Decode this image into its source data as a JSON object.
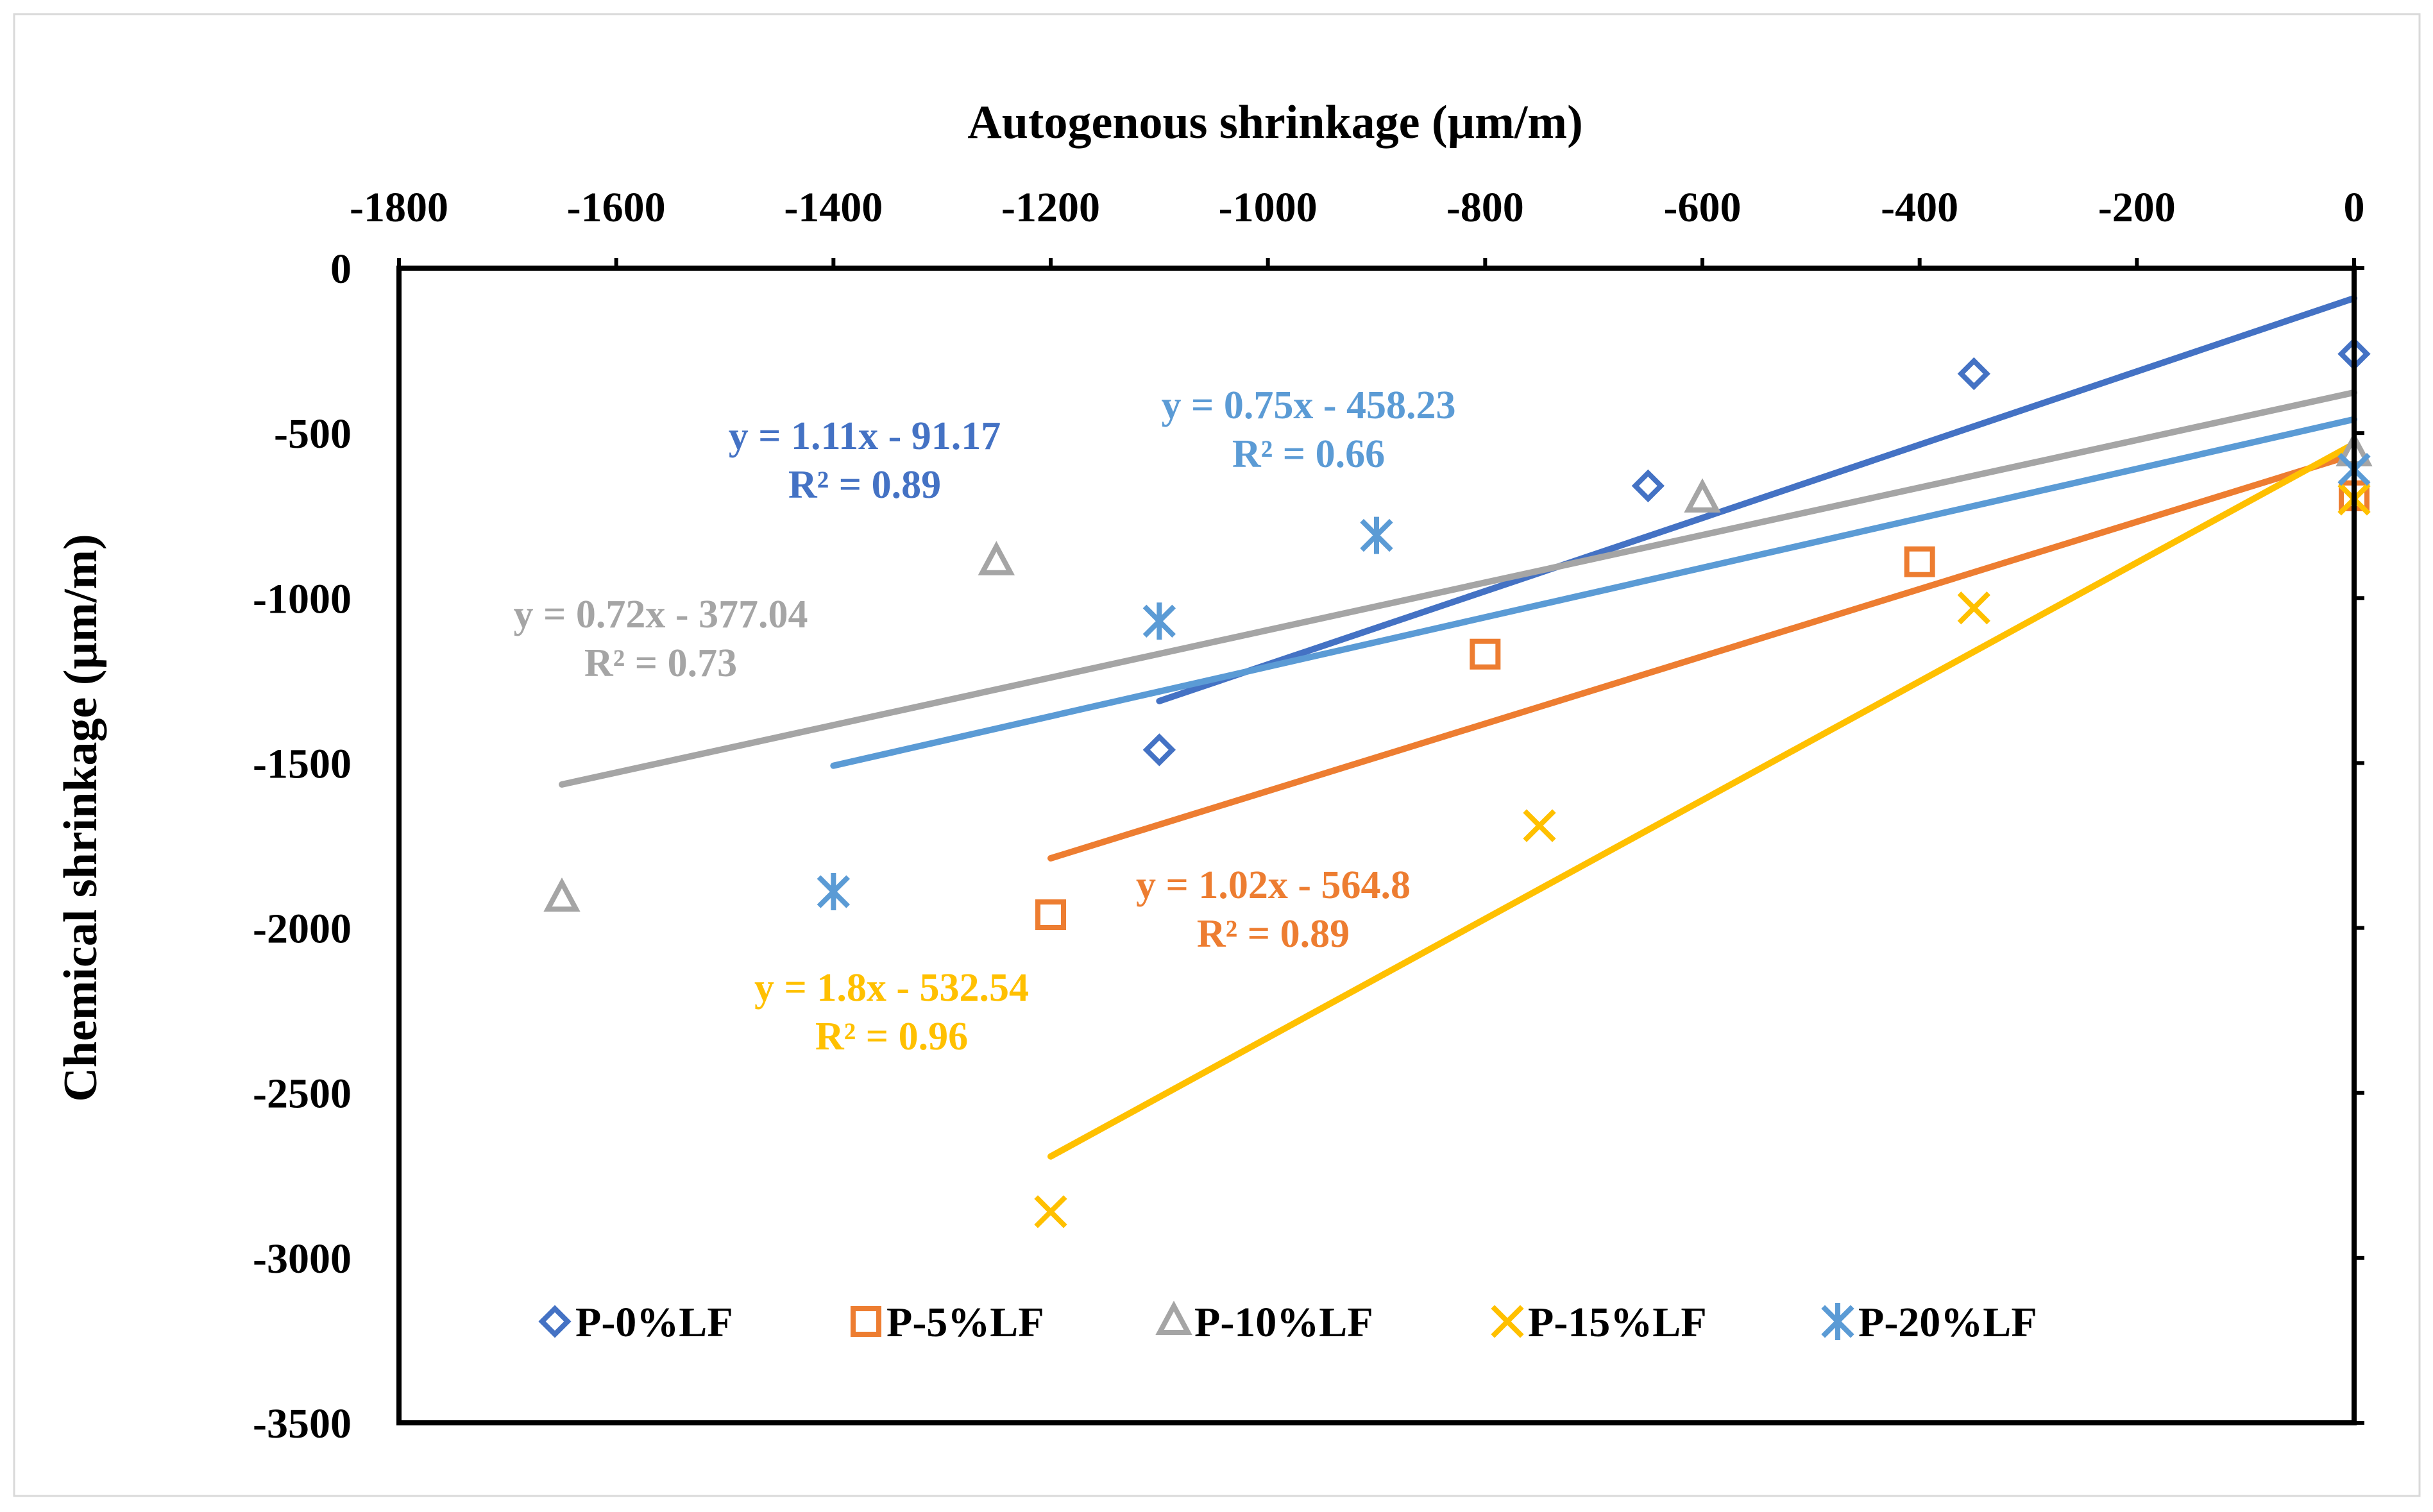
{
  "chart_data": {
    "type": "scatter",
    "title": "",
    "xlabel": "Autogenous shrinkage (µm/m)",
    "ylabel": "Chemical shrinkage (µm/m)",
    "xlim": [
      -1800,
      0
    ],
    "ylim": [
      -3500,
      0
    ],
    "x_ticks": [
      -1800,
      -1600,
      -1400,
      -1200,
      -1000,
      -800,
      -600,
      -400,
      -200,
      0
    ],
    "y_ticks": [
      0,
      -500,
      -1000,
      -1500,
      -2000,
      -2500,
      -3000,
      -3500
    ],
    "x_axis_position": "top",
    "grid": false,
    "legend_position": "bottom-inside",
    "series": [
      {
        "name": "P-0%LF",
        "marker": "diamond",
        "color": "#4472C4",
        "points": [
          [
            -1100,
            -1460
          ],
          [
            -650,
            -660
          ],
          [
            -350,
            -320
          ],
          [
            0,
            -260
          ]
        ],
        "trendline": {
          "x_range": [
            -1100,
            0
          ],
          "slope": 1.11,
          "intercept": -91.17,
          "equation": "y = 1.11x - 91.17",
          "r2": "R² = 0.89"
        }
      },
      {
        "name": "P-5%LF",
        "marker": "square",
        "color": "#ED7D31",
        "points": [
          [
            -1200,
            -1960
          ],
          [
            -800,
            -1170
          ],
          [
            -400,
            -890
          ],
          [
            0,
            -690
          ]
        ],
        "trendline": {
          "x_range": [
            -1200,
            0
          ],
          "slope": 1.02,
          "intercept": -564.8,
          "equation": "y = 1.02x - 564.8",
          "r2": "R² = 0.89"
        }
      },
      {
        "name": "P-10%LF",
        "marker": "triangle",
        "color": "#A5A5A5",
        "points": [
          [
            -1650,
            -1910
          ],
          [
            -1250,
            -890
          ],
          [
            -600,
            -700
          ],
          [
            0,
            -560
          ]
        ],
        "trendline": {
          "x_range": [
            -1650,
            0
          ],
          "slope": 0.72,
          "intercept": -377.04,
          "equation": "y = 0.72x - 377.04",
          "r2": "R² = 0.73"
        }
      },
      {
        "name": "P-15%LF",
        "marker": "x",
        "color": "#FFC000",
        "points": [
          [
            -1200,
            -2860
          ],
          [
            -750,
            -1690
          ],
          [
            -350,
            -1030
          ],
          [
            0,
            -700
          ]
        ],
        "trendline": {
          "x_range": [
            -1200,
            0
          ],
          "slope": 1.8,
          "intercept": -532.54,
          "equation": "y = 1.8x - 532.54",
          "r2": "R² = 0.96"
        }
      },
      {
        "name": "P-20%LF",
        "marker": "star",
        "color": "#5B9BD5",
        "points": [
          [
            -1400,
            -1890
          ],
          [
            -1100,
            -1070
          ],
          [
            -900,
            -810
          ],
          [
            0,
            -610
          ]
        ],
        "trendline": {
          "x_range": [
            -1400,
            0
          ],
          "slope": 0.75,
          "intercept": -458.23,
          "equation": "y = 0.75x - 458.23",
          "r2": "R² = 0.66"
        }
      }
    ]
  }
}
